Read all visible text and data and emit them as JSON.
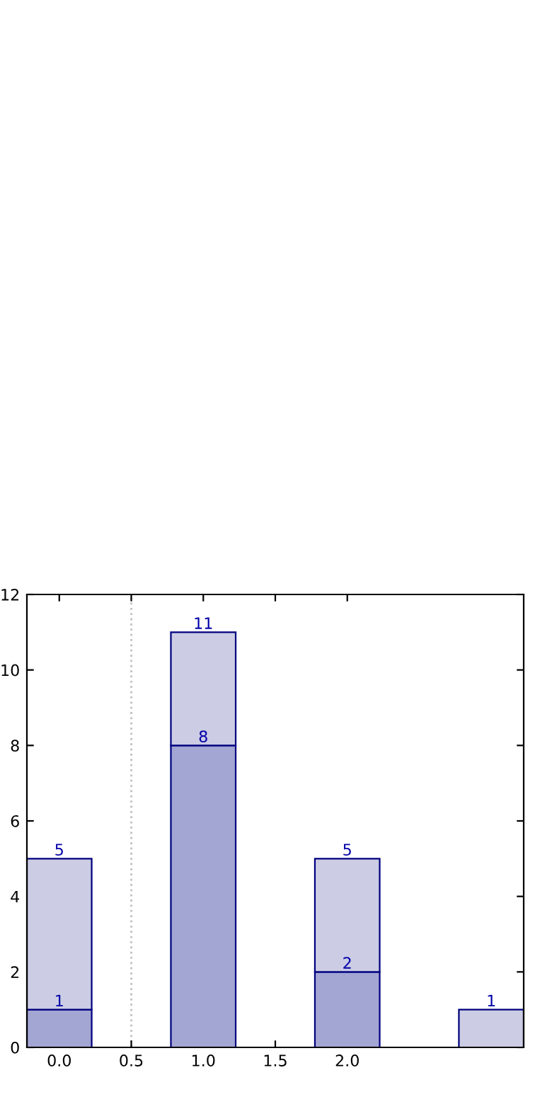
{
  "chart_data": {
    "type": "bar",
    "x": [
      0,
      1,
      2,
      3
    ],
    "stacked": true,
    "series": [
      {
        "color": "#a3a5d3",
        "values": [
          1,
          8,
          2,
          null
        ],
        "value_labels": [
          "1",
          "8",
          "2",
          null
        ]
      },
      {
        "color": "#cccce4",
        "values": [
          4,
          3,
          3,
          1
        ]
      }
    ],
    "totals": [
      "5",
      "11",
      "5",
      "1"
    ],
    "xlim": [
      -0.225,
      3.225
    ],
    "xticks": [
      {
        "value": 0,
        "label": "0.0"
      },
      {
        "value": 0.5,
        "label": "0.5"
      },
      {
        "value": 1,
        "label": "1.0"
      },
      {
        "value": 1.5,
        "label": "1.5"
      },
      {
        "value": 2,
        "label": "2.0"
      }
    ],
    "ylim": [
      0,
      12
    ],
    "yticks": [
      0,
      2,
      4,
      6,
      8,
      10,
      12
    ],
    "ref_lines": [
      {
        "axis": "x",
        "value": 0.5,
        "color": "#c0c0c0",
        "line_style": "dotted"
      }
    ],
    "grid": false,
    "legend": false
  }
}
